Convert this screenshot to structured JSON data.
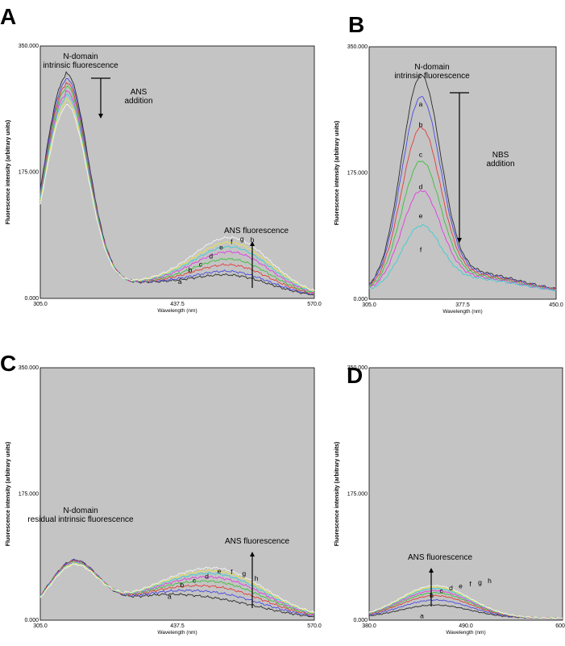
{
  "colors": {
    "background": "#c4c4c4",
    "a": "#2a2a2a",
    "b": "#4a4ae0",
    "c": "#e23c3c",
    "d": "#3cbf3c",
    "e": "#e03ce0",
    "f": "#3ccfcf",
    "g": "#e6e64a",
    "h": "#f4f4f4"
  },
  "chart_data": [
    {
      "panel": "A",
      "type": "line",
      "xlabel": "Wavelength (nm)",
      "ylabel": "Fluorescence intensity (arbitrary units)",
      "xlim": [
        305.0,
        570.0
      ],
      "ylim": [
        0,
        350
      ],
      "xticks": [
        "305.0",
        "437.5",
        "570.0"
      ],
      "yticks": [
        "0.000",
        "175.000",
        "350.000"
      ],
      "annotations": {
        "intrinsic": [
          "N-domain",
          "intrinsic fluorescence"
        ],
        "addition": [
          "ANS",
          "addition"
        ],
        "probe": "ANS fluorescence"
      },
      "series": [
        {
          "name": "a",
          "peak1": 305,
          "peak2": 28
        },
        {
          "name": "b",
          "peak1": 298,
          "peak2": 33
        },
        {
          "name": "c",
          "peak1": 292,
          "peak2": 42
        },
        {
          "name": "d",
          "peak1": 287,
          "peak2": 50
        },
        {
          "name": "e",
          "peak1": 280,
          "peak2": 60
        },
        {
          "name": "f",
          "peak1": 275,
          "peak2": 67
        },
        {
          "name": "g",
          "peak1": 268,
          "peak2": 73
        },
        {
          "name": "h",
          "peak1": 262,
          "peak2": 80
        }
      ]
    },
    {
      "panel": "B",
      "type": "line",
      "xlabel": "Wavelength (nm)",
      "ylabel": "Fluorescence intensity (arbitrary units)",
      "xlim": [
        305.0,
        450.0
      ],
      "ylim": [
        0,
        350
      ],
      "xticks": [
        "305.0",
        "377.5",
        "450.0"
      ],
      "yticks": [
        "0.000",
        "175.000",
        "350.000"
      ],
      "annotations": {
        "intrinsic": [
          "N-domain",
          "intrinsic fluorescence"
        ],
        "addition": [
          "NBS",
          "addition"
        ]
      },
      "series": [
        {
          "name": "a",
          "peak": 282
        },
        {
          "name": "b",
          "peak": 253
        },
        {
          "name": "c",
          "peak": 212
        },
        {
          "name": "d",
          "peak": 167
        },
        {
          "name": "e",
          "peak": 127
        },
        {
          "name": "f",
          "peak": 80
        }
      ]
    },
    {
      "panel": "C",
      "type": "line",
      "xlabel": "Wavelength (nm)",
      "ylabel": "Fluorescence intensity (arbitrary units)",
      "xlim": [
        305.0,
        570.0
      ],
      "ylim": [
        0,
        350
      ],
      "xticks": [
        "305.0",
        "437.5",
        "570.0"
      ],
      "yticks": [
        "0.000",
        "175.000",
        "350.000"
      ],
      "annotations": {
        "intrinsic": [
          "N-domain",
          "residual intrinsic fluorescence"
        ],
        "probe": "ANS fluorescence"
      },
      "series": [
        {
          "name": "a",
          "peak1": 76,
          "peak2": 22
        },
        {
          "name": "b",
          "peak1": 76,
          "peak2": 30
        },
        {
          "name": "c",
          "peak1": 75,
          "peak2": 38
        },
        {
          "name": "d",
          "peak1": 74,
          "peak2": 45
        },
        {
          "name": "e",
          "peak1": 73,
          "peak2": 51
        },
        {
          "name": "f",
          "peak1": 72,
          "peak2": 56
        },
        {
          "name": "g",
          "peak1": 71,
          "peak2": 60
        },
        {
          "name": "h",
          "peak1": 70,
          "peak2": 64
        }
      ]
    },
    {
      "panel": "D",
      "type": "line",
      "xlabel": "Wavelength (nm)",
      "ylabel": "Fluorescence intensity (arbitrary units)",
      "xlim": [
        380.0,
        600.0
      ],
      "ylim": [
        0,
        350
      ],
      "xticks": [
        "380.0",
        "490.0",
        "600.0"
      ],
      "yticks": [
        "0.000",
        "175.000",
        "350.000"
      ],
      "annotations": {
        "probe": "ANS fluorescence"
      },
      "series": [
        {
          "name": "a",
          "peak": 18
        },
        {
          "name": "b",
          "peak": 25
        },
        {
          "name": "c",
          "peak": 31
        },
        {
          "name": "d",
          "peak": 35
        },
        {
          "name": "e",
          "peak": 38
        },
        {
          "name": "f",
          "peak": 41
        },
        {
          "name": "g",
          "peak": 43
        },
        {
          "name": "h",
          "peak": 45
        }
      ]
    }
  ]
}
